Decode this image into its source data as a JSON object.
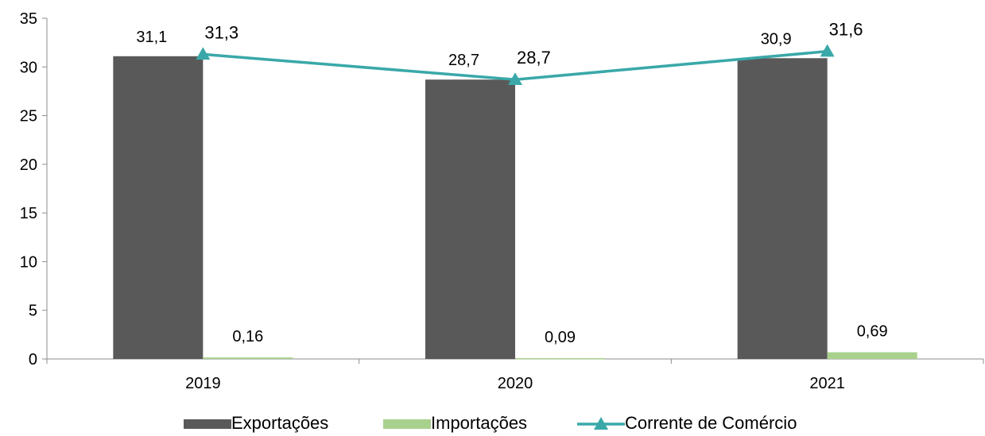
{
  "chart_data": {
    "type": "bar",
    "title": "",
    "xlabel": "",
    "ylabel": "",
    "categories": [
      "2019",
      "2020",
      "2021"
    ],
    "ylim": [
      0,
      35
    ],
    "yticks": [
      0,
      5,
      10,
      15,
      20,
      25,
      30,
      35
    ],
    "ytick_labels": [
      "0",
      "5",
      "10",
      "15",
      "20",
      "25",
      "30",
      "35"
    ],
    "grid": false,
    "legend_position": "bottom",
    "series": [
      {
        "name": "Exportações",
        "kind": "bar",
        "color": "#595959",
        "values": [
          31.1,
          28.7,
          30.9
        ],
        "labels": [
          "31,1",
          "28,7",
          "30,9"
        ]
      },
      {
        "name": "Importações",
        "kind": "bar",
        "color": "#a9d18e",
        "values": [
          0.16,
          0.09,
          0.69
        ],
        "labels": [
          "0,16",
          "0,09",
          "0,69"
        ]
      },
      {
        "name": "Corrente de Comércio",
        "kind": "line",
        "marker": "triangle",
        "color": "#3aa8a8",
        "values": [
          31.3,
          28.7,
          31.6
        ],
        "labels": [
          "31,3",
          "28,7",
          "31,6"
        ]
      }
    ]
  }
}
